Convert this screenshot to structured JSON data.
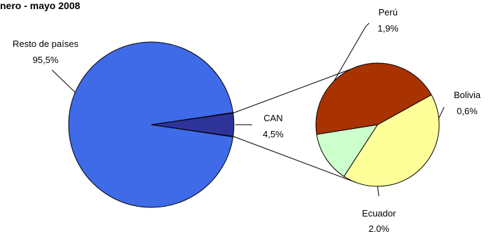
{
  "chart_data": {
    "type": "pie",
    "title": "nero - mayo 2008",
    "main_pie": {
      "slices": [
        {
          "label": "Resto de países",
          "value": 95.5,
          "value_label": "95,5%",
          "color": "#3f6ae8"
        },
        {
          "label": "CAN",
          "value": 4.5,
          "value_label": "4,5%",
          "color": "#2e339a"
        }
      ]
    },
    "sub_pie": {
      "parent": "CAN",
      "slices": [
        {
          "label": "Perú",
          "value": 1.9,
          "value_label": "1,9%",
          "color": "#ffff9a"
        },
        {
          "label": "Bolivia",
          "value": 0.6,
          "value_label": "0,6%",
          "color": "#ccffcc"
        },
        {
          "label": "Ecuador",
          "value": 2.0,
          "value_label": "2.0%",
          "color": "#a83200"
        }
      ]
    }
  }
}
